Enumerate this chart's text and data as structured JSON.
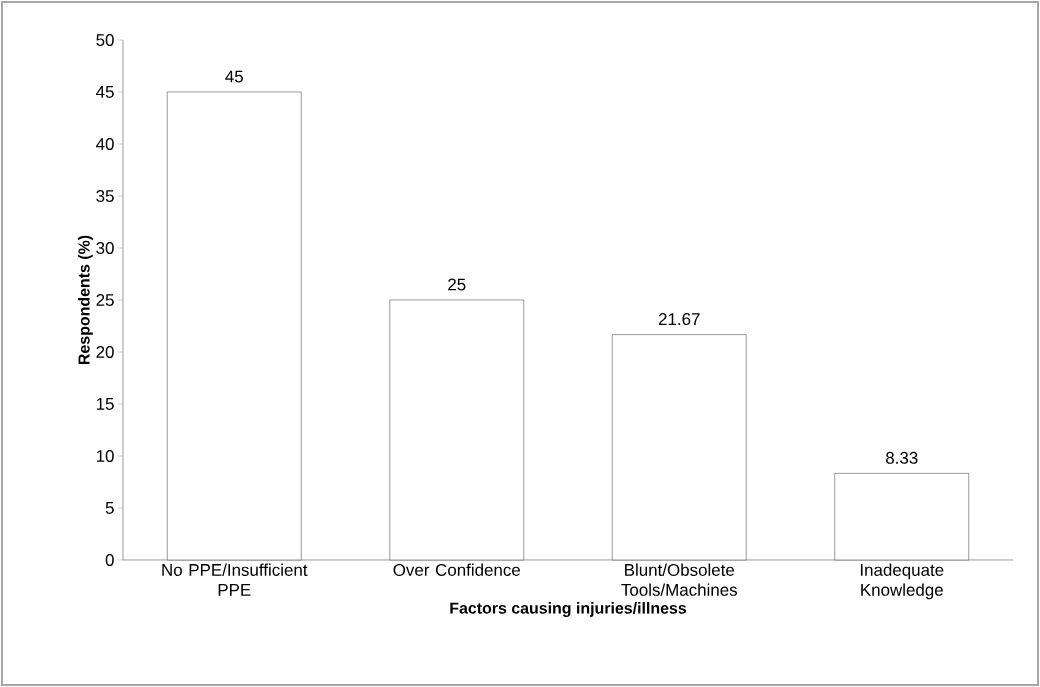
{
  "chart_data": {
    "type": "bar",
    "xlabel": "Factors causing injuries/illness",
    "ylabel": "Respondents (%)",
    "categories": [
      "No PPE/Insufficient PPE",
      "Over Confidence",
      "Blunt/Obsolete Tools/Machines",
      "Inadequate Knowledge"
    ],
    "values": [
      45,
      25,
      21.67,
      8.33
    ],
    "color": "#ffffff",
    "ylim": [
      0,
      50
    ],
    "yticks": [
      0,
      5,
      10,
      15,
      20,
      25,
      30,
      35,
      40,
      45,
      50
    ],
    "data_labels": true
  }
}
